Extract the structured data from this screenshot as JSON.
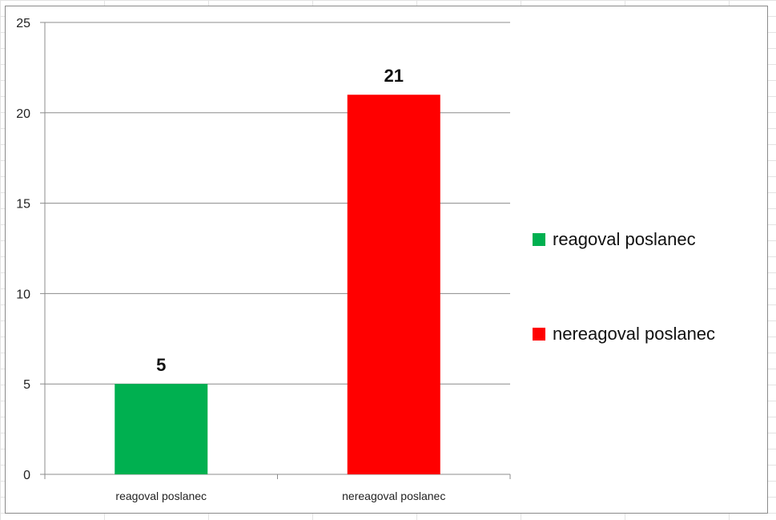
{
  "chart_data": {
    "type": "bar",
    "categories": [
      "reagoval poslanec",
      "nereagoval poslanec"
    ],
    "values": [
      5,
      21
    ],
    "data_labels": [
      "5",
      "21"
    ],
    "colors": [
      "#00b050",
      "#ff0000"
    ],
    "ylim": [
      0,
      25
    ],
    "yticks": [
      0,
      5,
      10,
      15,
      20,
      25
    ],
    "ytick_labels": [
      "0",
      "5",
      "10",
      "15",
      "20",
      "25"
    ],
    "grid": true,
    "legend_position": "right",
    "legend": [
      {
        "label": "reagoval poslanec",
        "color": "#00b050"
      },
      {
        "label": "nereagoval poslanec",
        "color": "#ff0000"
      }
    ]
  }
}
